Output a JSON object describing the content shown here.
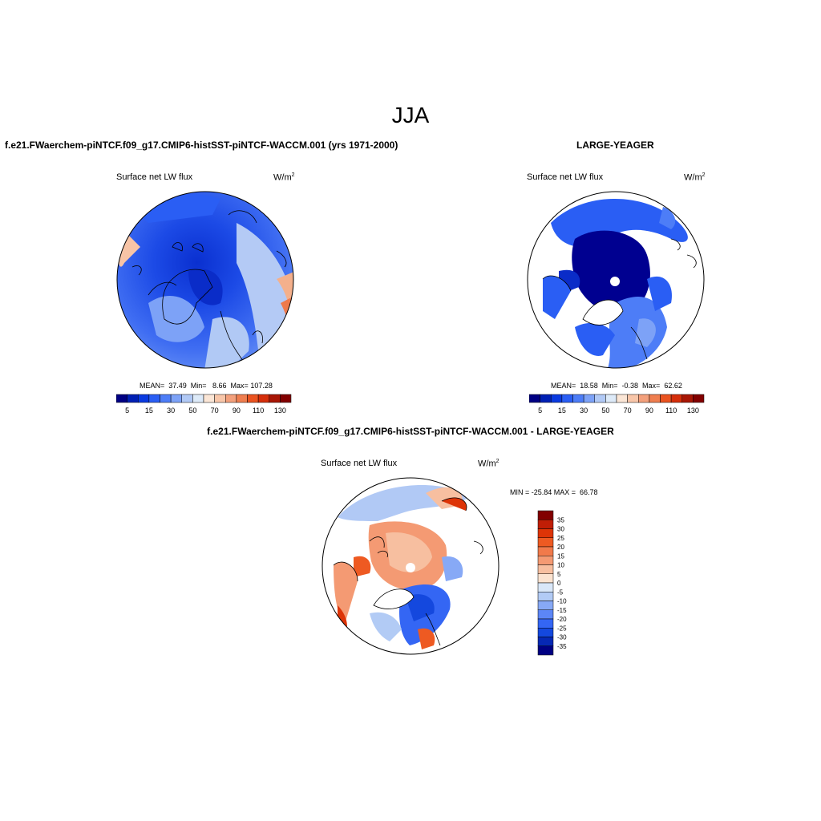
{
  "title": "JJA",
  "panels": {
    "p1": {
      "case_title": "f.e21.FWaerchem-piNTCF.f09_g17.CMIP6-histSST-piNTCF-WACCM.001 (yrs 1971-2000)",
      "left": "Surface net LW flux",
      "unit": "W/m",
      "unit_sup": "2",
      "stats": "MEAN=  37.49  Min=   8.66  Max= 107.28"
    },
    "p2": {
      "case_title": "LARGE-YEAGER",
      "left": "Surface net LW flux",
      "unit": "W/m",
      "unit_sup": "2",
      "stats": "MEAN=  18.58  Min=  -0.38  Max=  62.62"
    },
    "p3": {
      "case_title": "f.e21.FWaerchem-piNTCF.f09_g17.CMIP6-histSST-piNTCF-WACCM.001 - LARGE-YEAGER",
      "left": "Surface net LW flux",
      "unit": "W/m",
      "unit_sup": "2",
      "stats": "MIN = -25.84 MAX =  66.78"
    }
  },
  "colorbar_abs": {
    "labels": [
      "5",
      "15",
      "30",
      "50",
      "70",
      "90",
      "110",
      "130"
    ],
    "colors": [
      "#000083",
      "#0020b4",
      "#0a3ae0",
      "#2a5ef4",
      "#4d7df7",
      "#7da2f7",
      "#b1c9f5",
      "#ddeaf8",
      "#fbe6d6",
      "#f8c6a9",
      "#f3a07c",
      "#ef7e4f",
      "#ea5320",
      "#d52e0a",
      "#a81605",
      "#820000"
    ]
  },
  "colorbar_diff": {
    "labels": [
      "35",
      "30",
      "25",
      "20",
      "15",
      "10",
      "5",
      "0",
      "-5",
      "-10",
      "-15",
      "-20",
      "-25",
      "-30",
      "-35"
    ],
    "colors": [
      "#820000",
      "#c01e06",
      "#dd3407",
      "#ee5a22",
      "#f17a4b",
      "#f49a73",
      "#f7bfa0",
      "#fbe3d0",
      "#d9e7f8",
      "#b2cbf5",
      "#87a9f6",
      "#5c86f6",
      "#3466f4",
      "#1448de",
      "#0628b4",
      "#000083"
    ]
  }
}
